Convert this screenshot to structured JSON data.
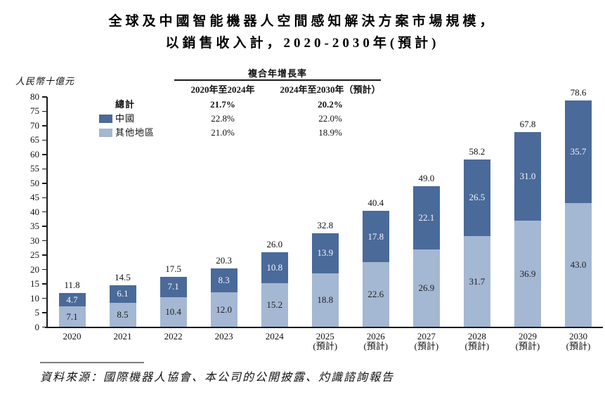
{
  "title": {
    "line1": "全球及中國智能機器人空間感知解決方案市場規模，",
    "line2": "以銷售收入計，2020-2030年(預計)"
  },
  "y_axis_unit": "人民幣十億元",
  "cagr_table": {
    "header": "複合年增長率",
    "columns": [
      "2020年至2024年",
      "2024年至2030年（預計）"
    ],
    "rows": [
      {
        "label": "總計",
        "bold": true,
        "swatch": null,
        "values": [
          "21.7%",
          "20.2%"
        ]
      },
      {
        "label": "中國",
        "bold": false,
        "swatch": "#4a6a9a",
        "values": [
          "22.8%",
          "22.0%"
        ]
      },
      {
        "label": "其他地區",
        "bold": false,
        "swatch": "#a4b7d3",
        "values": [
          "21.0%",
          "18.9%"
        ]
      }
    ]
  },
  "chart_data": {
    "type": "bar",
    "stacked": true,
    "title": "全球及中國智能機器人空間感知解決方案市場規模，以銷售收入計，2020-2030年(預計)",
    "ylabel": "人民幣十億元",
    "ylim": [
      0,
      80
    ],
    "ytick_step": 5,
    "grid": false,
    "legend_position": "upper-left",
    "categories": [
      "2020",
      "2021",
      "2022",
      "2023",
      "2024",
      "2025",
      "2026",
      "2027",
      "2028",
      "2029",
      "2030"
    ],
    "category_notes": [
      "",
      "",
      "",
      "",
      "",
      "(預計)",
      "(預計)",
      "(預計)",
      "(預計)",
      "(預計)",
      "(預計)"
    ],
    "series": [
      {
        "name": "中國",
        "color": "#4a6a9a",
        "label_color": "#f4f6fa",
        "values": [
          "4.7",
          "6.1",
          "7.1",
          "8.3",
          "10.8",
          "13.9",
          "17.8",
          "22.1",
          "26.5",
          "31.0",
          "35.7"
        ]
      },
      {
        "name": "其他地區",
        "color": "#a4b7d3",
        "label_color": "#1f1f1f",
        "values": [
          "7.1",
          "8.5",
          "10.4",
          "12.0",
          "15.2",
          "18.8",
          "22.6",
          "26.9",
          "31.7",
          "36.9",
          "43.0"
        ]
      }
    ],
    "totals": [
      "11.8",
      "14.5",
      "17.5",
      "20.3",
      "26.0",
      "32.8",
      "40.4",
      "49.0",
      "58.2",
      "67.8",
      "78.6"
    ]
  },
  "source": "資料來源：國際機器人協會、本公司的公開披露、灼識諮詢報告"
}
